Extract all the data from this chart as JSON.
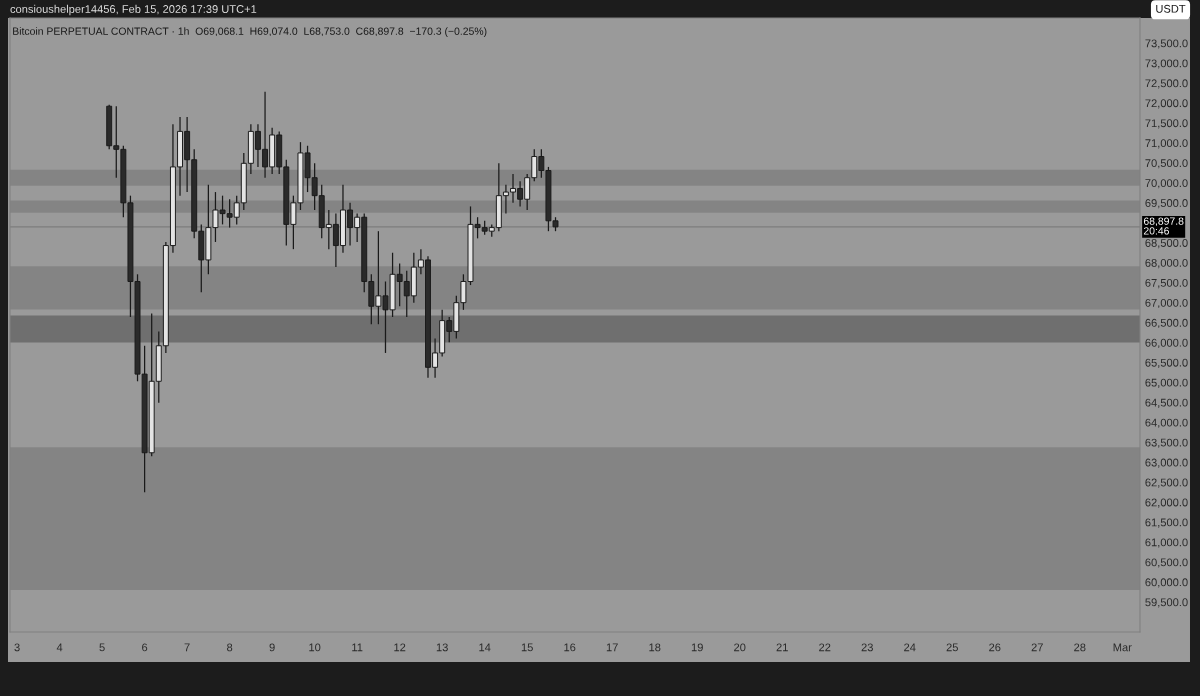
{
  "chart_data": {
    "type": "candlestick",
    "title": "consioushelper14456, Feb 15, 2026 17:39 UTC+1",
    "subtitle": "Bitcoin PERPETUAL CONTRACT · 1h  O69,068.1  H69,074.0  L68,753.0  C68,897.8  −170.3 (−0.25%)",
    "ylabel": "USDT",
    "x": [
      "2026-02-05T04:00",
      "2026-02-05T08:00",
      "2026-02-05T12:00",
      "2026-02-05T16:00",
      "2026-02-05T20:00",
      "2026-02-06T00:00",
      "2026-02-06T04:00",
      "2026-02-06T08:00",
      "2026-02-06T12:00",
      "2026-02-06T16:00",
      "2026-02-06T20:00",
      "2026-02-07T00:00",
      "2026-02-07T04:00",
      "2026-02-07T08:00",
      "2026-02-07T12:00",
      "2026-02-07T16:00",
      "2026-02-07T20:00",
      "2026-02-08T00:00",
      "2026-02-08T04:00",
      "2026-02-08T08:00",
      "2026-02-08T12:00",
      "2026-02-08T16:00",
      "2026-02-08T20:00",
      "2026-02-09T00:00",
      "2026-02-09T04:00",
      "2026-02-09T08:00",
      "2026-02-09T12:00",
      "2026-02-09T16:00",
      "2026-02-09T20:00",
      "2026-02-10T00:00",
      "2026-02-10T04:00",
      "2026-02-10T08:00",
      "2026-02-10T12:00",
      "2026-02-10T16:00",
      "2026-02-10T20:00",
      "2026-02-11T00:00",
      "2026-02-11T04:00",
      "2026-02-11T08:00",
      "2026-02-11T12:00",
      "2026-02-11T16:00",
      "2026-02-11T20:00",
      "2026-02-12T00:00",
      "2026-02-12T04:00",
      "2026-02-12T08:00",
      "2026-02-12T12:00",
      "2026-02-12T16:00",
      "2026-02-12T20:00",
      "2026-02-13T00:00",
      "2026-02-13T04:00",
      "2026-02-13T08:00",
      "2026-02-13T12:00",
      "2026-02-13T16:00",
      "2026-02-13T20:00",
      "2026-02-14T00:00",
      "2026-02-14T04:00",
      "2026-02-14T08:00",
      "2026-02-14T12:00",
      "2026-02-14T16:00",
      "2026-02-14T20:00",
      "2026-02-15T00:00",
      "2026-02-15T04:00",
      "2026-02-15T08:00",
      "2026-02-15T12:00",
      "2026-02-15T16:00"
    ],
    "ohlc": [
      [
        71920,
        71960,
        70840,
        70930
      ],
      [
        70930,
        71920,
        70130,
        70840
      ],
      [
        70840,
        70930,
        69140,
        69500
      ],
      [
        69500,
        69680,
        66640,
        67530
      ],
      [
        67530,
        67710,
        65030,
        65210
      ],
      [
        65210,
        65920,
        62250,
        63240
      ],
      [
        63240,
        66730,
        63150,
        65030
      ],
      [
        65030,
        66280,
        64490,
        65920
      ],
      [
        65920,
        68520,
        65740,
        68430
      ],
      [
        68430,
        71470,
        68250,
        70400
      ],
      [
        70400,
        71650,
        69680,
        71290
      ],
      [
        71290,
        71650,
        69770,
        70580
      ],
      [
        70580,
        70840,
        68610,
        68790
      ],
      [
        68790,
        68960,
        67260,
        68070
      ],
      [
        68070,
        69950,
        67710,
        68880
      ],
      [
        68880,
        69770,
        68520,
        69320
      ],
      [
        69320,
        69680,
        68960,
        69230
      ],
      [
        69230,
        69590,
        68880,
        69140
      ],
      [
        69140,
        69680,
        68960,
        69500
      ],
      [
        69500,
        70750,
        69320,
        70490
      ],
      [
        70490,
        71470,
        70220,
        71290
      ],
      [
        71290,
        71470,
        70400,
        70840
      ],
      [
        70840,
        72280,
        70130,
        70400
      ],
      [
        70400,
        71380,
        70220,
        71200
      ],
      [
        71200,
        71290,
        70220,
        70400
      ],
      [
        70400,
        70580,
        68430,
        68960
      ],
      [
        68960,
        69680,
        68340,
        69500
      ],
      [
        69500,
        71020,
        69320,
        70750
      ],
      [
        70750,
        70930,
        69770,
        70130
      ],
      [
        70130,
        70490,
        69320,
        69680
      ],
      [
        69680,
        69950,
        68610,
        68880
      ],
      [
        68880,
        69320,
        68340,
        68960
      ],
      [
        68960,
        69230,
        67890,
        68430
      ],
      [
        68430,
        69950,
        68250,
        69320
      ],
      [
        69320,
        69500,
        68430,
        68880
      ],
      [
        68880,
        69230,
        68520,
        69140
      ],
      [
        69140,
        69230,
        67260,
        67530
      ],
      [
        67530,
        67710,
        66460,
        66910
      ],
      [
        66910,
        68790,
        66460,
        67170
      ],
      [
        67170,
        67530,
        65740,
        66820
      ],
      [
        66820,
        68250,
        66640,
        67710
      ],
      [
        67710,
        67980,
        66910,
        67530
      ],
      [
        67530,
        67800,
        66640,
        67170
      ],
      [
        67170,
        68250,
        67000,
        67890
      ],
      [
        67890,
        68340,
        67710,
        68070
      ],
      [
        68070,
        68160,
        65120,
        65380
      ],
      [
        65380,
        66100,
        65120,
        65740
      ],
      [
        65740,
        66820,
        65650,
        66550
      ],
      [
        66550,
        66640,
        66010,
        66280
      ],
      [
        66280,
        67170,
        66100,
        67000
      ],
      [
        67000,
        67710,
        66820,
        67530
      ],
      [
        67530,
        69410,
        67440,
        68960
      ],
      [
        68960,
        69140,
        68610,
        68880
      ],
      [
        68880,
        69050,
        68700,
        68790
      ],
      [
        68790,
        68960,
        68650,
        68880
      ],
      [
        68880,
        70490,
        68790,
        69680
      ],
      [
        69680,
        69950,
        69230,
        69770
      ],
      [
        69770,
        70220,
        69500,
        69860
      ],
      [
        69860,
        70040,
        69410,
        69590
      ],
      [
        69590,
        70220,
        69320,
        70130
      ],
      [
        70130,
        70840,
        70040,
        70660
      ],
      [
        70660,
        70840,
        70130,
        70310
      ],
      [
        70310,
        70400,
        68790,
        69050
      ],
      [
        69050,
        69140,
        68790,
        68898
      ]
    ],
    "xlim": [
      "2026-02-02T20:00",
      "2026-03-01T10:00"
    ],
    "xticks": [
      {
        "value": "2026-02-03",
        "label": "3"
      },
      {
        "value": "2026-02-04",
        "label": "4"
      },
      {
        "value": "2026-02-05",
        "label": "5"
      },
      {
        "value": "2026-02-06",
        "label": "6"
      },
      {
        "value": "2026-02-07",
        "label": "7"
      },
      {
        "value": "2026-02-08",
        "label": "8"
      },
      {
        "value": "2026-02-09",
        "label": "9"
      },
      {
        "value": "2026-02-10",
        "label": "10"
      },
      {
        "value": "2026-02-11",
        "label": "11"
      },
      {
        "value": "2026-02-12",
        "label": "12"
      },
      {
        "value": "2026-02-13",
        "label": "13"
      },
      {
        "value": "2026-02-14",
        "label": "14"
      },
      {
        "value": "2026-02-15",
        "label": "15"
      },
      {
        "value": "2026-02-16",
        "label": "16"
      },
      {
        "value": "2026-02-17",
        "label": "17"
      },
      {
        "value": "2026-02-18",
        "label": "18"
      },
      {
        "value": "2026-02-19",
        "label": "19"
      },
      {
        "value": "2026-02-20",
        "label": "20"
      },
      {
        "value": "2026-02-21",
        "label": "21"
      },
      {
        "value": "2026-02-22",
        "label": "22"
      },
      {
        "value": "2026-02-23",
        "label": "23"
      },
      {
        "value": "2026-02-24",
        "label": "24"
      },
      {
        "value": "2026-02-25",
        "label": "25"
      },
      {
        "value": "2026-02-26",
        "label": "26"
      },
      {
        "value": "2026-02-27",
        "label": "27"
      },
      {
        "value": "2026-02-28",
        "label": "28"
      },
      {
        "value": "2026-03-01",
        "label": "Mar"
      }
    ],
    "ylim": [
      58750,
      74130
    ],
    "yticks": [
      {
        "value": 59500,
        "label": "59,500.0"
      },
      {
        "value": 60000,
        "label": "60,000.0"
      },
      {
        "value": 60500,
        "label": "60,500.0"
      },
      {
        "value": 61000,
        "label": "61,000.0"
      },
      {
        "value": 61500,
        "label": "61,500.0"
      },
      {
        "value": 62000,
        "label": "62,000.0"
      },
      {
        "value": 62500,
        "label": "62,500.0"
      },
      {
        "value": 63000,
        "label": "63,000.0"
      },
      {
        "value": 63500,
        "label": "63,500.0"
      },
      {
        "value": 64000,
        "label": "64,000.0"
      },
      {
        "value": 64500,
        "label": "64,500.0"
      },
      {
        "value": 65000,
        "label": "65,000.0"
      },
      {
        "value": 65500,
        "label": "65,500.0"
      },
      {
        "value": 66000,
        "label": "66,000.0"
      },
      {
        "value": 66500,
        "label": "66,500.0"
      },
      {
        "value": 67000,
        "label": "67,000.0"
      },
      {
        "value": 67500,
        "label": "67,500.0"
      },
      {
        "value": 68000,
        "label": "68,000.0"
      },
      {
        "value": 68500,
        "label": "68,500.0"
      },
      {
        "value": 69500,
        "label": "69,500.0"
      },
      {
        "value": 70000,
        "label": "70,000.0"
      },
      {
        "value": 70500,
        "label": "70,500.0"
      },
      {
        "value": 71000,
        "label": "71,000.0"
      },
      {
        "value": 71500,
        "label": "71,500.0"
      },
      {
        "value": 72000,
        "label": "72,000.0"
      },
      {
        "value": 72500,
        "label": "72,500.0"
      },
      {
        "value": 73000,
        "label": "73,000.0"
      },
      {
        "value": 73500,
        "label": "73,500.0"
      }
    ],
    "bands": [
      {
        "axis": "y",
        "from": 69930,
        "to": 70330,
        "color": "#848484"
      },
      {
        "axis": "y",
        "from": 69250,
        "to": 69560,
        "color": "#848484"
      },
      {
        "axis": "y",
        "from": 66830,
        "to": 67910,
        "color": "#848484"
      },
      {
        "axis": "y",
        "from": 66000,
        "to": 66680,
        "color": "#6f6f6f"
      },
      {
        "axis": "y",
        "from": 59800,
        "to": 63380,
        "color": "#848484"
      }
    ],
    "ref_lines": [
      {
        "axis": "y",
        "value": 68897.8,
        "label": "68,897.8\n20:46",
        "color": "#7d7d7d"
      }
    ],
    "grid": false,
    "legend": false
  }
}
